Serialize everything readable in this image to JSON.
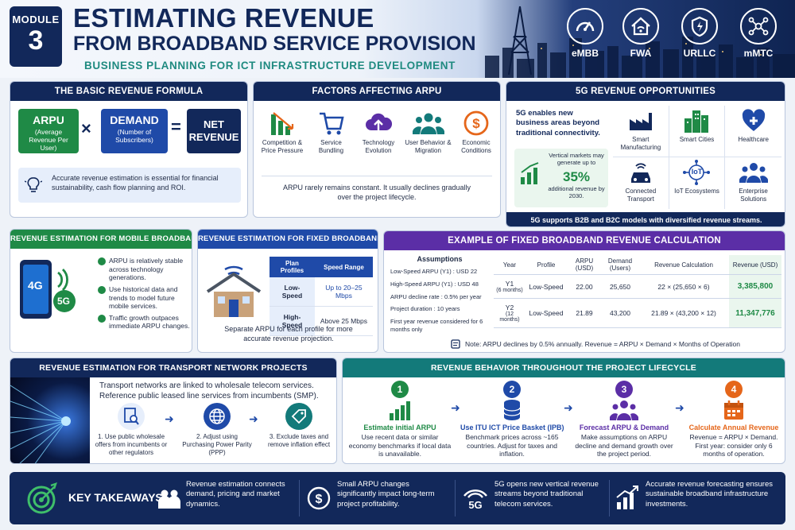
{
  "header": {
    "module_label": "MODULE",
    "module_number": "3",
    "title_line1": "ESTIMATING REVENUE",
    "title_line2": "FROM BROADBAND SERVICE PROVISION",
    "subtitle": "BUSINESS PLANNING FOR ICT INFRASTRUCTURE DEVELOPMENT",
    "use_cases": [
      {
        "label": "eMBB",
        "icon": "speedometer-icon"
      },
      {
        "label": "FWA",
        "icon": "home-wifi-icon"
      },
      {
        "label": "URLLC",
        "icon": "shield-icon"
      },
      {
        "label": "mMTC",
        "icon": "network-nodes-icon"
      }
    ]
  },
  "formula": {
    "title": "THE BASIC REVENUE FORMULA",
    "arpu_label": "ARPU",
    "arpu_sub": "(Average Revenue Per User)",
    "times": "×",
    "demand_label": "DEMAND",
    "demand_sub": "(Number of Subscribers)",
    "equals": "=",
    "net_label": "NET REVENUE",
    "note": "Accurate revenue estimation is essential for financial sustainability, cash flow planning and ROI."
  },
  "factors": {
    "title": "FACTORS AFFECTING ARPU",
    "items": [
      {
        "label": "Competition & Price Pressure",
        "icon": "declining-bars-icon"
      },
      {
        "label": "Service Bundling",
        "icon": "shopping-cart-icon"
      },
      {
        "label": "Technology Evolution",
        "icon": "cloud-upload-icon"
      },
      {
        "label": "User Behavior & Migration",
        "icon": "users-icon"
      },
      {
        "label": "Economic Conditions",
        "icon": "dollar-coin-icon"
      }
    ],
    "note": "ARPU rarely remains constant. It usually declines gradually over the project lifecycle."
  },
  "opportunities": {
    "title": "5G REVENUE OPPORTUNITIES",
    "intro": "5G enables new business areas beyond traditional connectivity.",
    "stat_pre": "Vertical markets may generate up to",
    "stat_value": "35%",
    "stat_post": "additional revenue by 2030.",
    "items": [
      {
        "label": "Smart Manufacturing",
        "icon": "factory-icon"
      },
      {
        "label": "Smart Cities",
        "icon": "city-buildings-icon"
      },
      {
        "label": "Healthcare",
        "icon": "health-heart-icon"
      },
      {
        "label": "Connected Transport",
        "icon": "connected-car-icon"
      },
      {
        "label": "IoT Ecosystems",
        "icon": "iot-icon"
      },
      {
        "label": "Enterprise Solutions",
        "icon": "enterprise-users-icon"
      }
    ],
    "iot_text": "IoT",
    "footer": "5G supports B2B and B2C models with diversified revenue streams."
  },
  "mobile": {
    "title": "REVENUE ESTIMATION FOR MOBILE BROADBAND",
    "phone_4g": "4G",
    "phone_5g": "5G",
    "bullets": [
      "ARPU is relatively stable across technology generations.",
      "Use historical data and trends to model future mobile services.",
      "Traffic growth outpaces immediate ARPU changes."
    ]
  },
  "fixed": {
    "title": "REVENUE ESTIMATION FOR FIXED BROADBAND",
    "col1": "Plan Profiles",
    "col2": "Speed Range",
    "rows": [
      {
        "profile": "Low-Speed",
        "speed": "Up to 20–25 Mbps"
      },
      {
        "profile": "High-Speed",
        "speed": "Above 25 Mbps"
      }
    ],
    "note": "Separate ARPU for each profile for more accurate revenue projection."
  },
  "example": {
    "title": "EXAMPLE OF FIXED BROADBAND REVENUE CALCULATION",
    "assumptions_title": "Assumptions",
    "assumptions": [
      "Low-Speed ARPU (Y1) : USD 22",
      "High-Speed ARPU (Y1) : USD 48",
      "ARPU decline rate : 0.5% per year",
      "Project duration : 10 years",
      "First year revenue considered for 6 months only"
    ],
    "headers": [
      "Year",
      "Profile",
      "ARPU (USD)",
      "Demand (Users)",
      "Revenue Calculation",
      "Revenue (USD)"
    ],
    "rows": [
      {
        "year": "Y1",
        "period": "(6 months)",
        "profile": "Low-Speed",
        "arpu": "22.00",
        "demand": "25,650",
        "calc": "22 × (25,650 × 6)",
        "revenue": "3,385,800"
      },
      {
        "year": "Y2",
        "period": "(12 months)",
        "profile": "Low-Speed",
        "arpu": "21.89",
        "demand": "43,200",
        "calc": "21.89 × (43,200 × 12)",
        "revenue": "11,347,776"
      }
    ],
    "note": "Note: ARPU declines by 0.5% annually. Revenue = ARPU × Demand × Months of Operation"
  },
  "transport": {
    "title": "REVENUE ESTIMATION FOR TRANSPORT NETWORK PROJECTS",
    "intro": "Transport networks are linked to wholesale telecom services. Reference public leased line services from incumbents (SMP).",
    "steps": [
      {
        "label": "1. Use public wholesale offers from incumbents or other regulators",
        "icon": "document-search-icon"
      },
      {
        "label": "2. Adjust using Purchasing Power Parity (PPP)",
        "icon": "globe-icon"
      },
      {
        "label": "3. Exclude taxes and remove inflation effect",
        "icon": "price-tag-icon"
      }
    ]
  },
  "lifecycle": {
    "title": "REVENUE BEHAVIOR THROUGHOUT THE PROJECT LIFECYCLE",
    "steps": [
      {
        "num": "1",
        "title": "Estimate initial ARPU",
        "text": "Use recent data or similar economy benchmarks if local data is unavailable.",
        "color": "#1f8a46",
        "icon": "bar-growth-icon"
      },
      {
        "num": "2",
        "title": "Use ITU ICT Price Basket (IPB)",
        "text": "Benchmark prices across ~165 countries. Adjust for taxes and inflation.",
        "color": "#1f4aa8",
        "icon": "database-icon"
      },
      {
        "num": "3",
        "title": "Forecast ARPU & Demand",
        "text": "Make assumptions on ARPU decline and demand growth over the project period.",
        "color": "#5b2ea6",
        "icon": "team-icon"
      },
      {
        "num": "4",
        "title": "Calculate Annual Revenue",
        "text": "Revenue = ARPU × Demand. First year: consider only 6 months of operation.",
        "color": "#e5661a",
        "icon": "calendar-icon"
      }
    ]
  },
  "takeaways": {
    "title": "KEY TAKEAWAYS",
    "items": [
      {
        "text": "Revenue estimation connects demand, pricing and market dynamics.",
        "icon": "people-icon"
      },
      {
        "text": "Small ARPU changes significantly impact long-term project profitability.",
        "icon": "dollar-icon"
      },
      {
        "text": "5G opens new vertical revenue streams beyond traditional telecom services.",
        "icon": "5g-signal-icon"
      },
      {
        "text": "Accurate revenue forecasting ensures sustainable broadband infrastructure investments.",
        "icon": "growth-chart-icon"
      }
    ],
    "fiveg_text": "5G"
  }
}
